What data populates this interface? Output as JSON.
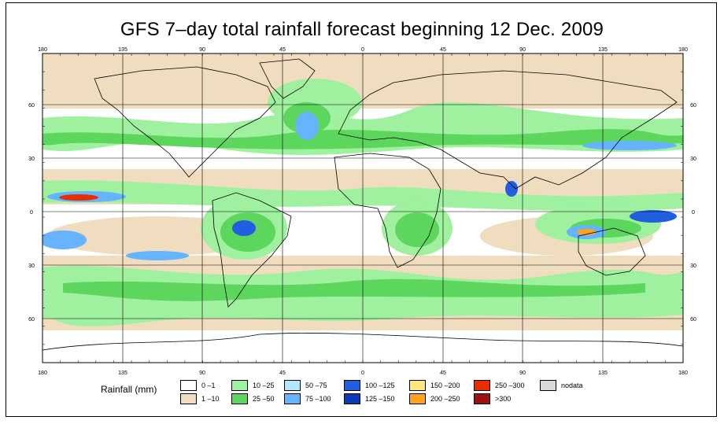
{
  "title": "GFS 7–day total rainfall forecast beginning 12 Dec. 2009",
  "axes": {
    "lon_labels": [
      "180",
      "135",
      "90",
      "45",
      "0",
      "45",
      "90",
      "135",
      "180"
    ],
    "lat_labels": [
      "60",
      "30",
      "0",
      "30",
      "60"
    ]
  },
  "legend": {
    "title": "Rainfall (mm)",
    "items": [
      {
        "label": "0 –1",
        "color": "#ffffff"
      },
      {
        "label": "1 –10",
        "color": "#f0dcbe"
      },
      {
        "label": "10 –25",
        "color": "#9ff09f"
      },
      {
        "label": "25 –50",
        "color": "#5cd65c"
      },
      {
        "label": "50 –75",
        "color": "#b3e6ff"
      },
      {
        "label": "75 –100",
        "color": "#66b3ff"
      },
      {
        "label": "100 –125",
        "color": "#1f5fe0"
      },
      {
        "label": "125 –150",
        "color": "#0a3bb8"
      },
      {
        "label": "150 –200",
        "color": "#ffe680"
      },
      {
        "label": "200 –250",
        "color": "#ffa31a"
      },
      {
        "label": "250 –300",
        "color": "#e62e00"
      },
      {
        "label": ">300",
        "color": "#a01010"
      },
      {
        "label": "nodata",
        "color": "#d9d9d9"
      }
    ]
  }
}
